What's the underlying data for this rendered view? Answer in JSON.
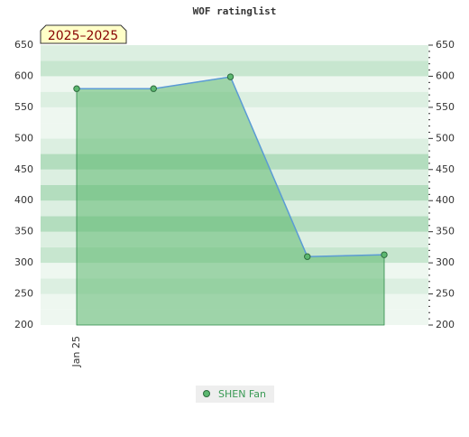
{
  "chart_data": {
    "type": "line",
    "title": "WOF ratinglist",
    "badge": "2025–2025",
    "categories": [
      "Jan 25",
      null,
      null,
      null,
      null
    ],
    "series": [
      {
        "name": "SHEN Fan",
        "color": "#5b9bd5",
        "fill": "#5cb870",
        "marker": "#3a8f50",
        "values": [
          580,
          580,
          599,
          310,
          313
        ]
      }
    ],
    "ylim": [
      200,
      650
    ],
    "yticks": [
      200,
      250,
      300,
      350,
      400,
      450,
      500,
      550,
      600,
      650
    ],
    "grid": true
  }
}
